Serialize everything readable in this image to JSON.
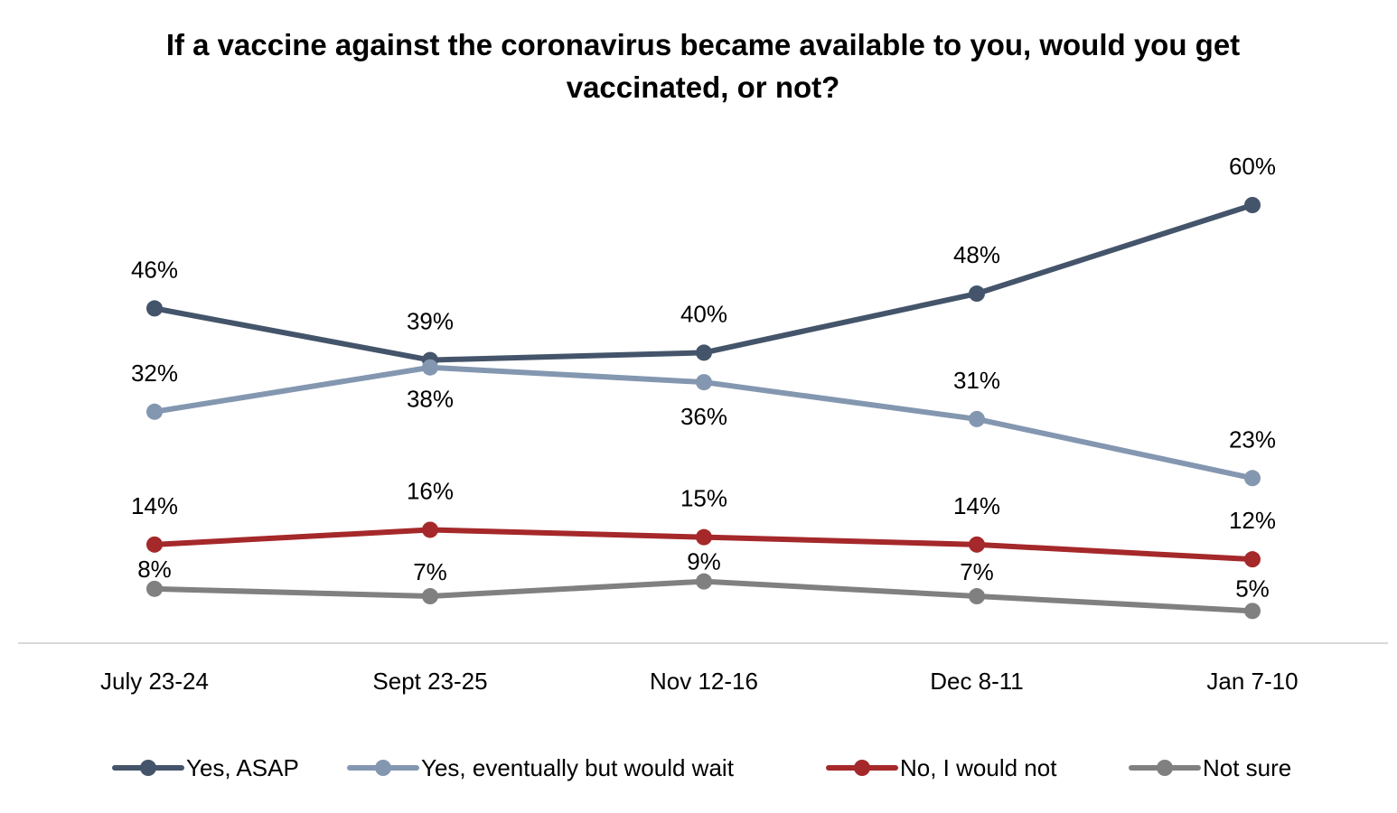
{
  "chart_data": {
    "type": "line",
    "title": "If a vaccine against the coronavirus became available to you, would you get vaccinated, or not?",
    "xlabel": "",
    "ylabel": "",
    "categories": [
      "July 23-24",
      "Sept 23-25",
      "Nov 12-16",
      "Dec 8-11",
      "Jan 7-10"
    ],
    "ylim": [
      0,
      70
    ],
    "grid": false,
    "legend_position": "bottom",
    "series": [
      {
        "name": "Yes, ASAP",
        "color": "#44546a",
        "values": [
          46,
          39,
          40,
          48,
          60
        ],
        "labels": [
          "46%",
          "39%",
          "40%",
          "48%",
          "60%"
        ]
      },
      {
        "name": "Yes, eventually but would wait",
        "color": "#8497b0",
        "values": [
          32,
          38,
          36,
          31,
          23
        ],
        "labels": [
          "32%",
          "38%",
          "36%",
          "31%",
          "23%"
        ]
      },
      {
        "name": "No, I would not",
        "color": "#a5282a",
        "values": [
          14,
          16,
          15,
          14,
          12
        ],
        "labels": [
          "14%",
          "16%",
          "15%",
          "14%",
          "12%"
        ]
      },
      {
        "name": "Not sure",
        "color": "#808080",
        "values": [
          8,
          7,
          9,
          7,
          5
        ],
        "labels": [
          "8%",
          "7%",
          "9%",
          "7%",
          "5%"
        ]
      }
    ]
  }
}
